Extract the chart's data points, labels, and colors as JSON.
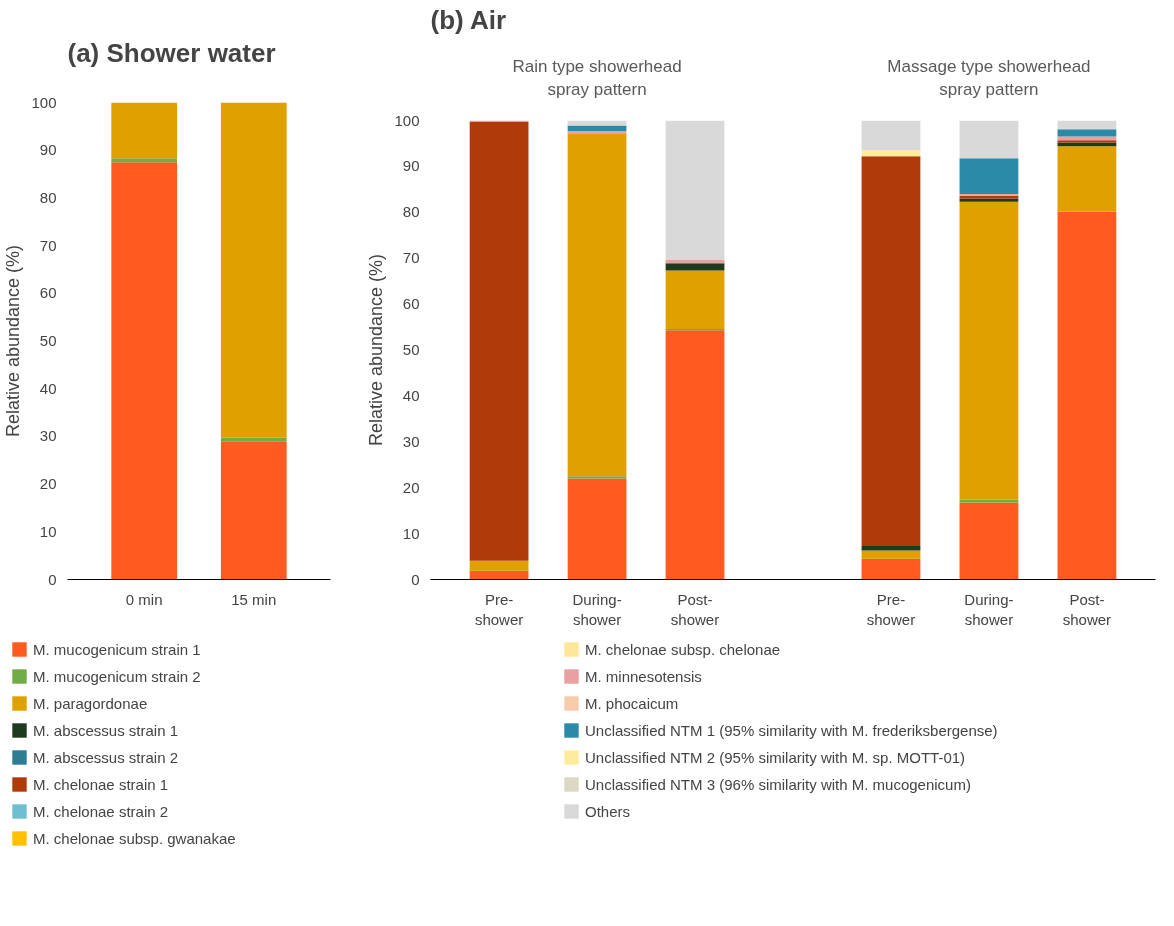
{
  "chart_data": [
    {
      "type": "bar",
      "title": "(a) Shower water",
      "ylabel": "Relative abundance (%)",
      "stacked": true,
      "categories": [
        "0 min",
        "15 min"
      ],
      "ylim": [
        0,
        100
      ],
      "yticks": [
        0,
        10,
        20,
        30,
        40,
        50,
        60,
        70,
        80,
        90,
        100
      ],
      "series": [
        {
          "color": "#ff5a1f",
          "values": [
            87.5,
            29
          ]
        },
        {
          "color": "#70ad47",
          "values": [
            0.8,
            0.7
          ]
        },
        {
          "color": "#e0a000",
          "values": [
            11.7,
            70.3
          ]
        }
      ]
    },
    {
      "type": "bar",
      "title": "(b) Air",
      "ylabel": "Relative abundance (%)",
      "stacked": true,
      "categories": [
        "Pre-shower",
        "During-shower",
        "Post-shower",
        "Pre-shower",
        "During-shower",
        "Post-shower"
      ],
      "ylim": [
        0,
        100
      ],
      "yticks": [
        0,
        10,
        20,
        30,
        40,
        50,
        60,
        70,
        80,
        90,
        100
      ],
      "legend": "bottom",
      "annotations": [
        "Rain type showerhead spray pattern",
        "Massage type showerhead spray pattern"
      ],
      "series": [
        {
          "name": "M. mucogenicum strain 1",
          "color": "#ff5a1f",
          "values": [
            1.9,
            22.0,
            54.3,
            4.5,
            16.8,
            80.2
          ]
        },
        {
          "name": "M. mucogenicum strain 2",
          "color": "#70ad47",
          "values": [
            null,
            0.5,
            0.3,
            null,
            0.6,
            null
          ]
        },
        {
          "name": "M. paragordonae",
          "color": "#e0a000",
          "values": [
            2.2,
            74.7,
            12.7,
            1.8,
            64.9,
            14.2
          ]
        },
        {
          "name": "M. abscessus strain 1",
          "color": "#1f3a1f",
          "values": [
            null,
            null,
            1.6,
            1.0,
            0.7,
            0.8
          ]
        },
        {
          "name": "M. abscessus strain 2",
          "color": "#2e7d94",
          "values": [
            null,
            null,
            null,
            null,
            null,
            null
          ]
        },
        {
          "name": "M. chelonae strain 1",
          "color": "#b03a0a",
          "values": [
            95.6,
            null,
            null,
            84.9,
            0.6,
            0.5
          ]
        },
        {
          "name": "M. chelonae strain 2",
          "color": "#6fbfd0",
          "values": [
            null,
            null,
            null,
            null,
            null,
            null
          ]
        },
        {
          "name": "M. chelonae subsp. gwanakae",
          "color": "#ffc000",
          "values": [
            null,
            null,
            null,
            null,
            null,
            null
          ]
        },
        {
          "name": "M. chelonae subsp. chelonae",
          "color": "#ffe699",
          "values": [
            null,
            null,
            null,
            null,
            null,
            null
          ]
        },
        {
          "name": "M. minnesotensis",
          "color": "#e8a0a0",
          "values": [
            0.3,
            0.5,
            0.8,
            null,
            0.4,
            0.8
          ]
        },
        {
          "name": "M. phocaicum",
          "color": "#f8cbad",
          "values": [
            null,
            null,
            null,
            null,
            null,
            null
          ]
        },
        {
          "name": "Unclassified NTM 1 (95% similarity with M. frederiksbergense)",
          "color": "#2b8aa8",
          "values": [
            null,
            1.2,
            null,
            null,
            7.8,
            1.6
          ]
        },
        {
          "name": "Unclassified NTM 2 (95% similarity with M. sp. MOTT-01)",
          "color": "#ffeb9c",
          "values": [
            null,
            null,
            null,
            1.3,
            null,
            null
          ]
        },
        {
          "name": "Unclassified NTM 3 (96% similarity with M. mucogenicum)",
          "color": "#ddd8c4",
          "values": [
            null,
            null,
            null,
            null,
            null,
            null
          ]
        },
        {
          "name": "Others",
          "color": "#d9d9d9",
          "values": [
            null,
            1.1,
            30.3,
            6.5,
            8.2,
            1.9
          ]
        }
      ]
    }
  ]
}
